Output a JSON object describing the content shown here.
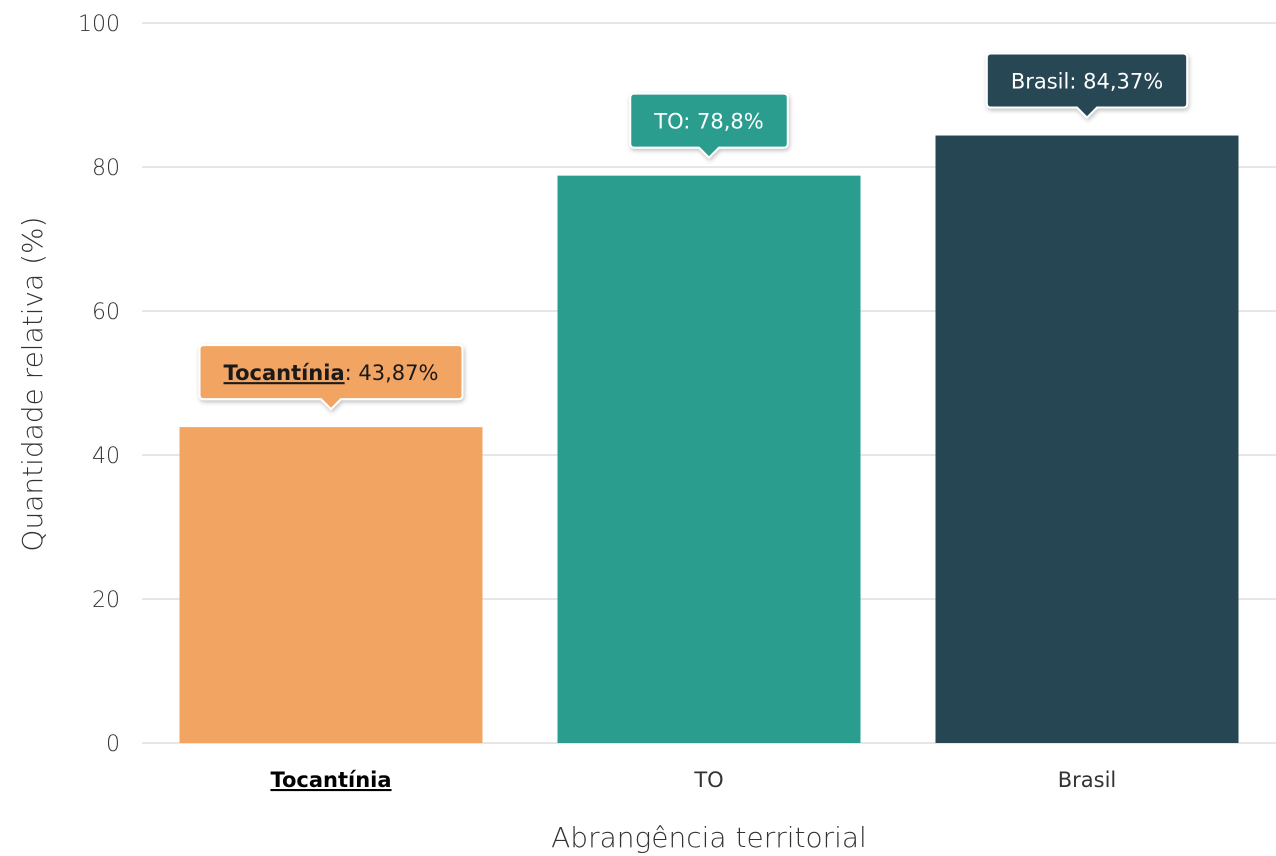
{
  "chart_data": {
    "type": "bar",
    "categories": [
      "Tocantínia",
      "TO",
      "Brasil"
    ],
    "values": [
      43.87,
      78.8,
      84.37
    ],
    "value_labels": [
      "43,87%",
      "78,8%",
      "84,37%"
    ],
    "highlighted_category": "Tocantínia",
    "colors": [
      "#F2A463",
      "#2A9D8F",
      "#264653"
    ],
    "xlabel": "Abrangência territorial",
    "ylabel": "Quantidade relativa (%)",
    "ylim": [
      0,
      100
    ],
    "yticks": [
      "0",
      "20",
      "40",
      "60",
      "80",
      "100"
    ],
    "grid": true,
    "legend": "none"
  }
}
